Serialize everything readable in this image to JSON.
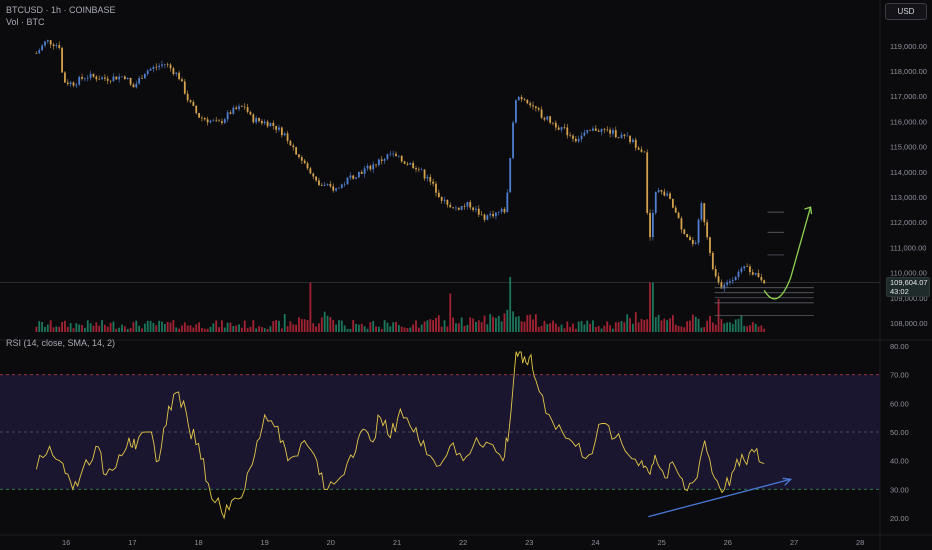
{
  "header": {
    "symbol_line": "BTCUSD · 1h · COINBASE",
    "volume_line": "Vol · BTC",
    "rsi_line": "RSI (14, close, SMA, 14, 2)"
  },
  "currency_button": "USD",
  "last_price": {
    "value": "109,604.07",
    "countdown": "43:02"
  },
  "colors": {
    "background": "#0b0b0e",
    "candle_up": "#4f7fd0",
    "candle_down": "#d4a24c",
    "volume_up": "#1f8a6a",
    "volume_down": "#c0283a",
    "rsi_line": "#e3c648",
    "rsi_band": "#1a1630",
    "arrow_green": "#8fd14f",
    "arrow_blue": "#4a78d6"
  },
  "chart_data": [
    {
      "type": "candlestick",
      "x_tick_labels": [
        "16",
        "17",
        "18",
        "19",
        "20",
        "21",
        "22",
        "23",
        "24",
        "25",
        "26",
        "27",
        "28"
      ],
      "y_tick_labels": [
        "119,000.00",
        "118,000.00",
        "117,000.00",
        "116,000.00",
        "115,000.00",
        "114,000.00",
        "113,000.00",
        "112,000.00",
        "111,000.00",
        "110,000.00",
        "109,000.00",
        "108,000.00"
      ],
      "ylim": [
        107500,
        119500
      ],
      "path_closes": [
        [
          15.55,
          118700
        ],
        [
          15.7,
          119200
        ],
        [
          15.9,
          119000
        ],
        [
          15.95,
          117600
        ],
        [
          16.1,
          117500
        ],
        [
          16.3,
          117800
        ],
        [
          16.6,
          117700
        ],
        [
          16.9,
          117800
        ],
        [
          17.0,
          117300
        ],
        [
          17.2,
          118000
        ],
        [
          17.5,
          118300
        ],
        [
          17.7,
          117800
        ],
        [
          17.85,
          116800
        ],
        [
          18.0,
          116200
        ],
        [
          18.3,
          115900
        ],
        [
          18.5,
          116400
        ],
        [
          18.7,
          116600
        ],
        [
          18.8,
          116100
        ],
        [
          19.1,
          115900
        ],
        [
          19.3,
          115500
        ],
        [
          19.5,
          114700
        ],
        [
          19.8,
          113500
        ],
        [
          20.1,
          113300
        ],
        [
          20.3,
          113800
        ],
        [
          20.6,
          114200
        ],
        [
          20.9,
          114700
        ],
        [
          21.1,
          114400
        ],
        [
          21.3,
          114200
        ],
        [
          21.5,
          113600
        ],
        [
          21.8,
          112500
        ],
        [
          22.1,
          112700
        ],
        [
          22.3,
          112200
        ],
        [
          22.65,
          112500
        ],
        [
          22.75,
          116000
        ],
        [
          22.8,
          117000
        ],
        [
          22.95,
          116900
        ],
        [
          23.2,
          116200
        ],
        [
          23.5,
          115700
        ],
        [
          23.7,
          115300
        ],
        [
          24.0,
          115700
        ],
        [
          24.2,
          115600
        ],
        [
          24.5,
          115300
        ],
        [
          24.75,
          114800
        ],
        [
          24.8,
          110800
        ],
        [
          24.9,
          113300
        ],
        [
          25.1,
          113000
        ],
        [
          25.3,
          111800
        ],
        [
          25.5,
          111000
        ],
        [
          25.6,
          112700
        ],
        [
          25.8,
          109900
        ],
        [
          25.9,
          109300
        ],
        [
          26.1,
          109900
        ],
        [
          26.3,
          110200
        ],
        [
          26.55,
          109700
        ]
      ],
      "levels": [
        112400,
        111600,
        110700,
        109400,
        109200,
        109000,
        108800,
        108300
      ],
      "projection_arrow": [
        [
          26.55,
          109300
        ],
        [
          26.75,
          108900
        ],
        [
          26.95,
          109800
        ],
        [
          27.25,
          112600
        ]
      ]
    },
    {
      "type": "bar",
      "name": "Vol · BTC",
      "highlights": [
        [
          19.7,
          0.9
        ],
        [
          21.8,
          0.7
        ],
        [
          22.7,
          1.0
        ],
        [
          24.85,
          0.9
        ],
        [
          25.85,
          0.6
        ]
      ]
    },
    {
      "type": "line",
      "name": "RSI (14, close, SMA, 14, 2)",
      "y_tick_labels": [
        "80.00",
        "70.00",
        "60.00",
        "50.00",
        "40.00",
        "30.00",
        "20.00"
      ],
      "ylim": [
        16,
        83
      ],
      "overbought": 70,
      "midline": 50,
      "oversold": 30,
      "x": [
        15.55,
        15.75,
        15.95,
        16.1,
        16.25,
        16.45,
        16.6,
        16.8,
        16.95,
        17.05,
        17.25,
        17.4,
        17.55,
        17.7,
        17.85,
        18.0,
        18.15,
        18.35,
        18.5,
        18.7,
        18.85,
        19.0,
        19.2,
        19.35,
        19.55,
        19.75,
        19.9,
        20.1,
        20.3,
        20.45,
        20.6,
        20.75,
        20.9,
        21.05,
        21.25,
        21.4,
        21.6,
        21.8,
        22.0,
        22.2,
        22.4,
        22.6,
        22.7,
        22.8,
        22.9,
        23.0,
        23.1,
        23.3,
        23.5,
        23.7,
        23.9,
        24.1,
        24.3,
        24.5,
        24.7,
        24.8,
        24.9,
        25.05,
        25.2,
        25.35,
        25.5,
        25.65,
        25.8,
        25.95,
        26.1,
        26.25,
        26.4,
        26.55
      ],
      "values": [
        37,
        45,
        39,
        30,
        37,
        45,
        35,
        42,
        48,
        44,
        50,
        40,
        59,
        64,
        52,
        46,
        32,
        22,
        26,
        30,
        42,
        56,
        52,
        40,
        46,
        42,
        30,
        33,
        42,
        50,
        47,
        55,
        48,
        58,
        50,
        47,
        38,
        45,
        40,
        48,
        46,
        40,
        52,
        78,
        74,
        76,
        68,
        56,
        50,
        45,
        42,
        53,
        48,
        42,
        40,
        36,
        42,
        34,
        38,
        30,
        33,
        47,
        34,
        30,
        37,
        40,
        43,
        39
      ],
      "divergence_arrow": [
        [
          24.8,
          20.5
        ],
        [
          26.95,
          33.5
        ]
      ]
    }
  ]
}
